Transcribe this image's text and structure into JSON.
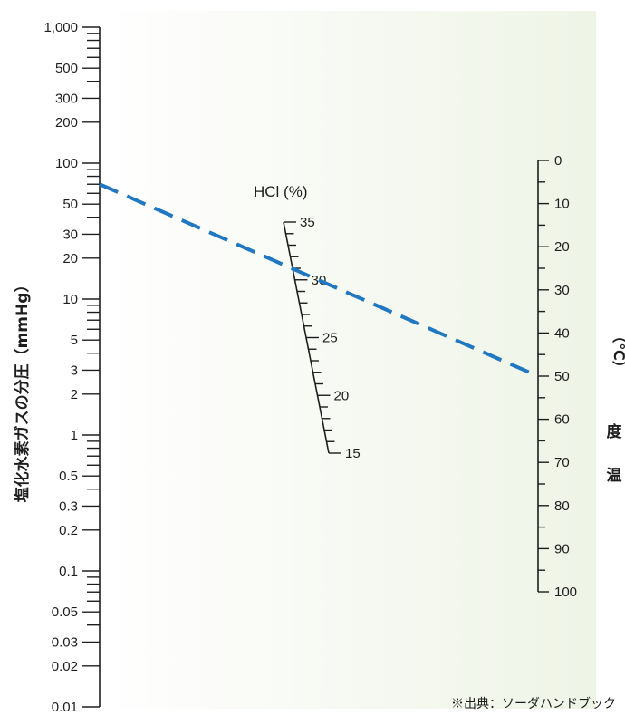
{
  "left_axis": {
    "title": "塩化水素ガスの分圧（mmHg）",
    "scale": "log",
    "range": [
      0.01,
      1000
    ],
    "labels": [
      "1,000",
      "500",
      "300",
      "200",
      "100",
      "50",
      "30",
      "20",
      "10",
      "5",
      "3",
      "2",
      "1",
      "0.5",
      "0.3",
      "0.2",
      "0.1",
      "0.05",
      "0.03",
      "0.02",
      "0.01"
    ],
    "label_values": [
      1000,
      500,
      300,
      200,
      100,
      50,
      30,
      20,
      10,
      5,
      3,
      2,
      1,
      0.5,
      0.3,
      0.2,
      0.1,
      0.05,
      0.03,
      0.02,
      0.01
    ]
  },
  "middle_axis": {
    "title": "HCl (%)",
    "range": [
      15,
      35
    ],
    "labels": [
      "35",
      "30",
      "25",
      "20",
      "15"
    ],
    "label_values": [
      35,
      30,
      25,
      20,
      15
    ]
  },
  "right_axis": {
    "title_chars": [
      "温",
      "度",
      "（℃）"
    ],
    "range": [
      0,
      100
    ],
    "labels": [
      "0",
      "10",
      "20",
      "30",
      "40",
      "50",
      "60",
      "70",
      "80",
      "90",
      "100"
    ],
    "label_values": [
      0,
      10,
      20,
      30,
      40,
      50,
      60,
      70,
      80,
      90,
      100
    ]
  },
  "example_line": {
    "color": "#1f78c1",
    "style": "dashed",
    "left_value_mmHg": 70,
    "hcl_percent": 30,
    "right_value_celsius": 50
  },
  "background": {
    "gradient_start": "#ffffff",
    "gradient_end": "#eef4e6"
  },
  "source_note": "※出典：ソーダハンドブック"
}
